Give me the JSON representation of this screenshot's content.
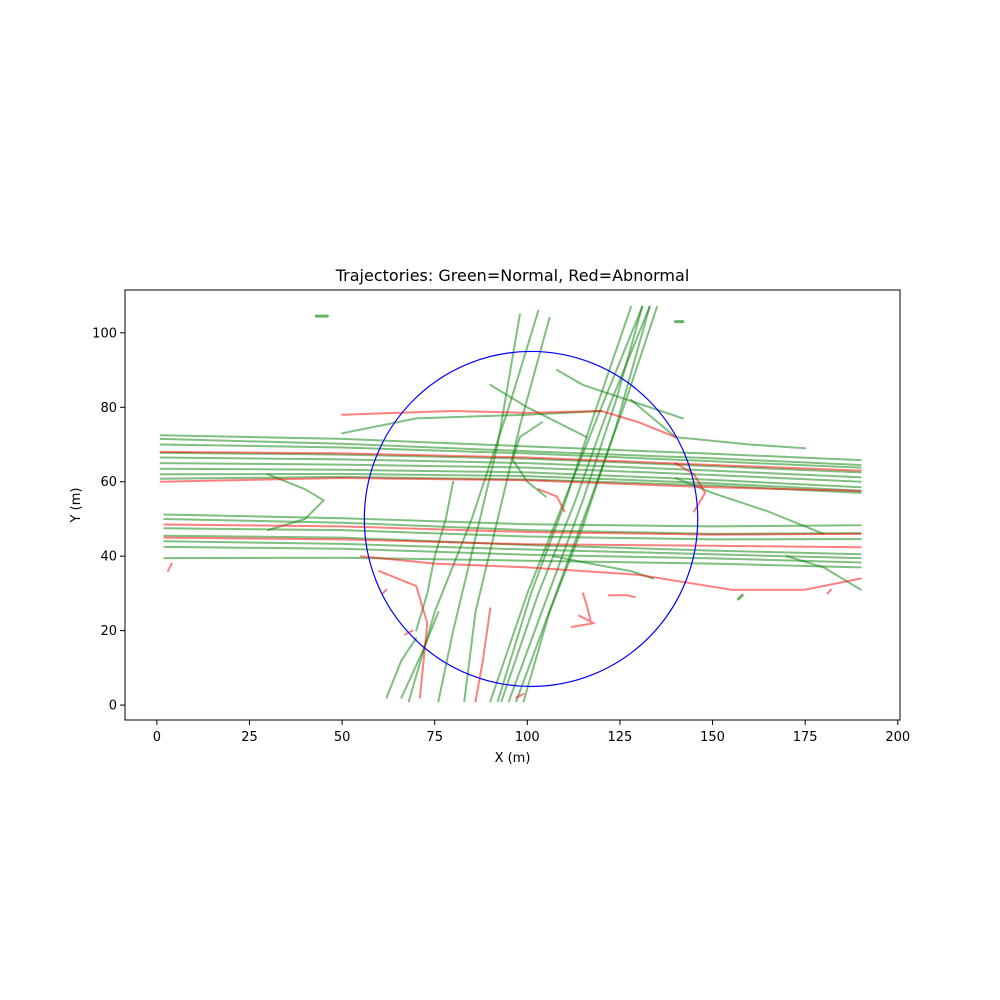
{
  "chart_data": {
    "type": "scatter",
    "title": "Trajectories: Green=Normal, Red=Abnormal",
    "xlabel": "X (m)",
    "ylabel": "Y (m)",
    "xlim": [
      -8.6,
      200.6
    ],
    "ylim": [
      -4,
      111.5
    ],
    "xticks": [
      0,
      25,
      50,
      75,
      100,
      125,
      150,
      175,
      200
    ],
    "yticks": [
      0,
      20,
      40,
      60,
      80,
      100
    ],
    "grid": false,
    "colors": {
      "normal": "#008000",
      "abnormal": "#ff0000",
      "circle": "#0000ff"
    },
    "circle": {
      "cx": 101,
      "cy": 50,
      "r": 45
    },
    "series": [
      {
        "category": "normal",
        "tracks": [
          [
            [
              1,
              72.5
            ],
            [
              50,
              71.5
            ],
            [
              100,
              69.5
            ],
            [
              150,
              67.5
            ],
            [
              190,
              65.8
            ]
          ],
          [
            [
              1,
              71.5
            ],
            [
              50,
              70.2
            ],
            [
              100,
              68.2
            ],
            [
              150,
              66.3
            ],
            [
              190,
              64.5
            ]
          ],
          [
            [
              1,
              70.0
            ],
            [
              50,
              69.2
            ],
            [
              100,
              67.6
            ],
            [
              150,
              65.5
            ],
            [
              190,
              63.8
            ]
          ],
          [
            [
              1,
              67.8
            ],
            [
              50,
              67.3
            ],
            [
              100,
              66.2
            ],
            [
              150,
              64.2
            ],
            [
              190,
              62.5
            ]
          ],
          [
            [
              1,
              66.5
            ],
            [
              50,
              66.0
            ],
            [
              100,
              65.0
            ],
            [
              150,
              63.0
            ],
            [
              190,
              61.2
            ]
          ],
          [
            [
              1,
              65.0
            ],
            [
              50,
              64.6
            ],
            [
              100,
              63.8
            ],
            [
              150,
              61.8
            ],
            [
              190,
              60.0
            ]
          ],
          [
            [
              1,
              63.5
            ],
            [
              50,
              63.2
            ],
            [
              100,
              62.5
            ],
            [
              150,
              60.5
            ],
            [
              190,
              58.5
            ]
          ],
          [
            [
              1,
              62.0
            ],
            [
              50,
              62.1
            ],
            [
              100,
              61.5
            ],
            [
              150,
              59.6
            ],
            [
              190,
              57.6
            ]
          ],
          [
            [
              1,
              60.8
            ],
            [
              50,
              61.3
            ],
            [
              100,
              60.6
            ],
            [
              150,
              59.0
            ],
            [
              190,
              57.0
            ]
          ],
          [
            [
              2,
              51.2
            ],
            [
              50,
              50.2
            ],
            [
              100,
              48.6
            ],
            [
              150,
              48.0
            ],
            [
              190,
              48.3
            ]
          ],
          [
            [
              2,
              50.0
            ],
            [
              50,
              49.0
            ],
            [
              100,
              47.0
            ],
            [
              150,
              46.0
            ],
            [
              190,
              46.2
            ]
          ],
          [
            [
              2,
              47.5
            ],
            [
              50,
              47.0
            ],
            [
              100,
              45.3
            ],
            [
              150,
              44.5
            ],
            [
              190,
              44.6
            ]
          ],
          [
            [
              2,
              45.5
            ],
            [
              50,
              45.0
            ],
            [
              100,
              43.0
            ],
            [
              150,
              41.5
            ],
            [
              190,
              40.5
            ]
          ],
          [
            [
              2,
              44.0
            ],
            [
              50,
              43.3
            ],
            [
              100,
              41.8
            ],
            [
              150,
              40.5
            ],
            [
              190,
              39.5
            ]
          ],
          [
            [
              2,
              42.5
            ],
            [
              50,
              42.0
            ],
            [
              100,
              40.4
            ],
            [
              150,
              39.4
            ],
            [
              190,
              38.3
            ]
          ],
          [
            [
              2,
              39.5
            ],
            [
              50,
              39.6
            ],
            [
              100,
              38.8
            ],
            [
              150,
              38.0
            ],
            [
              190,
              37.0
            ]
          ],
          [
            [
              68,
              1
            ],
            [
              75,
              25
            ],
            [
              85,
              50
            ],
            [
              95,
              80
            ],
            [
              103,
              106
            ]
          ],
          [
            [
              90,
              1
            ],
            [
              100,
              30
            ],
            [
              110,
              55
            ],
            [
              120,
              80
            ],
            [
              131,
              107
            ]
          ],
          [
            [
              93,
              1
            ],
            [
              103,
              30
            ],
            [
              113,
              55
            ],
            [
              122,
              80
            ],
            [
              133,
              107
            ]
          ],
          [
            [
              95,
              1
            ],
            [
              105,
              28
            ],
            [
              115,
              55
            ],
            [
              124,
              82
            ],
            [
              131,
              107
            ]
          ],
          [
            [
              97,
              1
            ],
            [
              107,
              28
            ],
            [
              117,
              55
            ],
            [
              126,
              80
            ],
            [
              135,
              107
            ]
          ],
          [
            [
              92,
              1
            ],
            [
              101,
              30
            ],
            [
              110,
              54
            ],
            [
              118,
              78
            ],
            [
              128,
              107
            ]
          ],
          [
            [
              99,
              1
            ],
            [
              106,
              25
            ],
            [
              115,
              48
            ],
            [
              124,
              75
            ],
            [
              133,
              107
            ]
          ],
          [
            [
              76,
              1
            ],
            [
              80,
              20
            ],
            [
              86,
              45
            ],
            [
              92,
              70
            ],
            [
              98,
              105
            ]
          ],
          [
            [
              83,
              1
            ],
            [
              86,
              25
            ],
            [
              92,
              50
            ],
            [
              98,
              75
            ],
            [
              106,
              104
            ]
          ],
          [
            [
              62,
              2
            ],
            [
              66,
              12
            ],
            [
              70,
              18
            ]
          ],
          [
            [
              66,
              2
            ],
            [
              72,
              15
            ],
            [
              76,
              25
            ]
          ],
          [
            [
              128,
              82
            ],
            [
              140,
              72
            ],
            [
              160,
              70
            ],
            [
              175,
              69
            ]
          ],
          [
            [
              107,
              40
            ],
            [
              117,
              38
            ],
            [
              128,
              36
            ],
            [
              134,
              34
            ]
          ],
          [
            [
              108,
              90
            ],
            [
              115,
              86
            ],
            [
              130,
              81
            ],
            [
              142,
              77
            ]
          ],
          [
            [
              90,
              86
            ],
            [
              100,
              80
            ],
            [
              110,
              75
            ],
            [
              116,
              72
            ]
          ],
          [
            [
              80,
              60
            ],
            [
              78,
              50
            ],
            [
              75,
              40
            ],
            [
              73,
              30
            ],
            [
              70,
              20
            ]
          ],
          [
            [
              50,
              73
            ],
            [
              70,
              77
            ],
            [
              100,
              78
            ],
            [
              120,
              79
            ]
          ],
          [
            [
              30,
              62
            ],
            [
              40,
              58
            ],
            [
              45,
              55
            ],
            [
              40,
              50
            ],
            [
              30,
              47
            ]
          ],
          [
            [
              105,
              56
            ],
            [
              100,
              60
            ],
            [
              96,
              66
            ],
            [
              98,
              72
            ],
            [
              104,
              76
            ]
          ],
          [
            [
              140,
              61
            ],
            [
              150,
              57
            ],
            [
              165,
              52
            ],
            [
              180,
              46
            ]
          ],
          [
            [
              170,
              40
            ],
            [
              180,
              37
            ],
            [
              190,
              31
            ]
          ]
        ]
      },
      {
        "category": "abnormal",
        "tracks": [
          [
            [
              1,
              68.0
            ],
            [
              50,
              67.6
            ],
            [
              100,
              66.5
            ],
            [
              150,
              64.5
            ],
            [
              190,
              63.0
            ]
          ],
          [
            [
              1,
              60.0
            ],
            [
              50,
              61.0
            ],
            [
              100,
              60.4
            ],
            [
              150,
              58.5
            ],
            [
              190,
              57.5
            ]
          ],
          [
            [
              2,
              48.5
            ],
            [
              50,
              48.0
            ],
            [
              100,
              46.5
            ],
            [
              150,
              45.8
            ],
            [
              190,
              46.0
            ]
          ],
          [
            [
              2,
              45.0
            ],
            [
              50,
              44.5
            ],
            [
              100,
              43.2
            ],
            [
              150,
              42.8
            ],
            [
              190,
              42.4
            ]
          ],
          [
            [
              55,
              40
            ],
            [
              75,
              38
            ],
            [
              100,
              37
            ],
            [
              130,
              35
            ],
            [
              155,
              31
            ],
            [
              175,
              31
            ],
            [
              190,
              34
            ]
          ],
          [
            [
              50,
              78
            ],
            [
              80,
              79
            ],
            [
              100,
              78.5
            ],
            [
              120,
              79
            ],
            [
              130,
              76
            ],
            [
              140,
              72
            ]
          ],
          [
            [
              140,
              65
            ],
            [
              145,
              62
            ],
            [
              148,
              57
            ],
            [
              145,
              52
            ]
          ],
          [
            [
              60,
              36
            ],
            [
              70,
              32
            ],
            [
              73,
              22
            ],
            [
              71,
              2
            ]
          ],
          [
            [
              90,
              26
            ],
            [
              88,
              12
            ],
            [
              86,
              1
            ]
          ],
          [
            [
              97,
              2
            ],
            [
              99,
              3
            ]
          ],
          [
            [
              103,
              58
            ],
            [
              108,
              56
            ],
            [
              110,
              52
            ]
          ],
          [
            [
              3,
              36
            ],
            [
              4,
              38
            ]
          ],
          [
            [
              181,
              30
            ],
            [
              182,
              31
            ]
          ],
          [
            [
              115,
              30
            ],
            [
              116,
              27
            ],
            [
              117,
              23
            ]
          ],
          [
            [
              114,
              24
            ],
            [
              118,
              22
            ],
            [
              112,
              21
            ]
          ],
          [
            [
              122,
              29.5
            ],
            [
              127,
              29.5
            ],
            [
              129,
              29
            ]
          ],
          [
            [
              67,
              19
            ],
            [
              69,
              20
            ]
          ],
          [
            [
              61,
              30
            ],
            [
              62,
              31
            ]
          ]
        ]
      }
    ],
    "blobs": [
      {
        "category": "normal",
        "points": [
          [
            43,
            104.5
          ],
          [
            46,
            104.5
          ]
        ]
      },
      {
        "category": "normal",
        "points": [
          [
            140,
            103
          ],
          [
            142,
            103
          ]
        ]
      },
      {
        "category": "normal",
        "points": [
          [
            157,
            28.5
          ],
          [
            158,
            29.5
          ]
        ]
      }
    ]
  }
}
